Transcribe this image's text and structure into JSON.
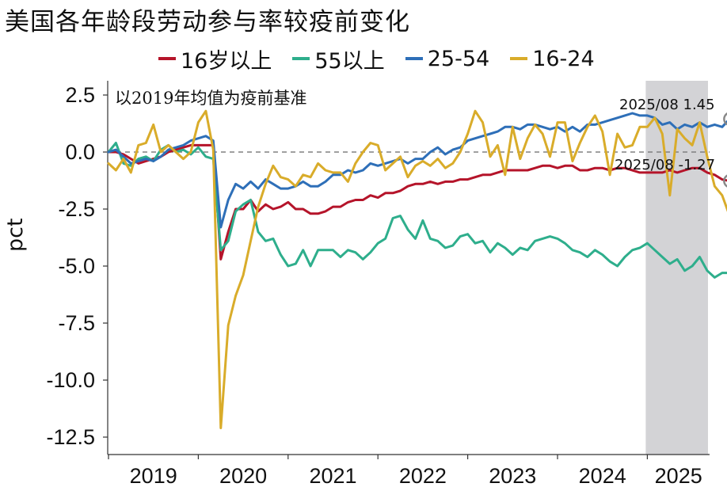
{
  "title": "美国各年龄段劳动参与率较疫前变化",
  "note": "以2019年均值为疫前基准",
  "ylabel": "pct",
  "chart_data": {
    "type": "line",
    "title": "美国各年龄段劳动参与率较疫前变化",
    "ylabel": "pct",
    "xlabel": "",
    "ylim": [
      -12.5,
      2.5
    ],
    "yticks": [
      2.5,
      0.0,
      -2.5,
      -5.0,
      -7.5,
      -10.0,
      -12.5
    ],
    "ytick_labels": [
      "2.5",
      "0.0",
      "-2.5",
      "-5.0",
      "-7.5",
      "-10.0",
      "-12.5"
    ],
    "xticks": [
      "2019",
      "2020",
      "2021",
      "2022",
      "2023",
      "2024",
      "2025"
    ],
    "x_start": "2019-01",
    "x_end": "2025-08",
    "reference_line": 0,
    "shaded_period": [
      "2025-01",
      "2025-08"
    ],
    "legend_position": "top",
    "series": [
      {
        "name": "16岁以上",
        "color": "#B5142A",
        "values": [
          0.0,
          0.0,
          -0.1,
          -0.3,
          -0.5,
          -0.4,
          -0.3,
          -0.2,
          0.0,
          0.1,
          0.2,
          0.3,
          0.3,
          0.3,
          0.3,
          -4.7,
          -3.5,
          -2.5,
          -2.5,
          -2.1,
          -2.6,
          -2.3,
          -2.5,
          -2.4,
          -2.2,
          -2.5,
          -2.5,
          -2.7,
          -2.7,
          -2.6,
          -2.4,
          -2.4,
          -2.2,
          -2.1,
          -2.1,
          -1.9,
          -2.0,
          -1.8,
          -1.8,
          -1.7,
          -1.5,
          -1.4,
          -1.4,
          -1.3,
          -1.4,
          -1.3,
          -1.3,
          -1.2,
          -1.2,
          -1.1,
          -1.0,
          -1.0,
          -0.9,
          -0.8,
          -0.8,
          -0.8,
          -0.8,
          -0.7,
          -0.6,
          -0.6,
          -0.7,
          -0.6,
          -0.6,
          -0.8,
          -0.8,
          -0.7,
          -0.7,
          -0.8,
          -0.7,
          -0.7,
          -0.8,
          -0.9,
          -0.9,
          -0.9,
          -0.9,
          -0.8,
          -0.9,
          -0.8,
          -0.7,
          -0.7,
          -0.9,
          -1.0,
          -1.2,
          -1.27
        ]
      },
      {
        "name": "55以上",
        "color": "#2EAE8C",
        "values": [
          0.0,
          0.4,
          -0.5,
          -0.6,
          -0.3,
          -0.2,
          -0.4,
          0.1,
          0.3,
          0.0,
          0.1,
          -0.1,
          0.2,
          -0.2,
          -0.3,
          -4.3,
          -3.9,
          -2.6,
          -2.3,
          -2.1,
          -3.5,
          -3.9,
          -3.8,
          -4.5,
          -5.0,
          -4.9,
          -4.3,
          -5.0,
          -4.3,
          -4.3,
          -4.3,
          -4.6,
          -4.3,
          -4.4,
          -4.7,
          -4.4,
          -4.0,
          -3.8,
          -2.9,
          -2.8,
          -3.4,
          -3.8,
          -3.0,
          -3.8,
          -3.9,
          -4.2,
          -4.1,
          -3.7,
          -3.6,
          -4.0,
          -3.9,
          -4.4,
          -4.0,
          -4.2,
          -4.5,
          -4.2,
          -4.3,
          -3.9,
          -3.8,
          -3.7,
          -3.8,
          -4.0,
          -4.3,
          -4.4,
          -4.6,
          -4.3,
          -4.5,
          -4.8,
          -5.0,
          -4.6,
          -4.3,
          -4.2,
          -4.0,
          -4.3,
          -4.6,
          -4.9,
          -4.7,
          -5.2,
          -5.0,
          -4.6,
          -5.2,
          -5.5,
          -5.3,
          -5.3
        ]
      },
      {
        "name": "25-54",
        "color": "#2E6FB8",
        "values": [
          0.0,
          0.1,
          -0.2,
          -0.5,
          -0.4,
          -0.3,
          -0.4,
          -0.2,
          0.1,
          0.2,
          0.3,
          0.5,
          0.6,
          0.7,
          0.5,
          -3.3,
          -2.1,
          -1.4,
          -1.6,
          -1.3,
          -1.6,
          -1.2,
          -1.4,
          -1.6,
          -1.6,
          -1.5,
          -1.3,
          -1.5,
          -1.5,
          -1.3,
          -1.0,
          -1.0,
          -0.8,
          -0.9,
          -0.8,
          -0.5,
          -0.6,
          -0.5,
          -0.4,
          -0.3,
          -0.5,
          -0.3,
          -0.3,
          0.0,
          0.2,
          -0.1,
          0.1,
          0.2,
          0.5,
          0.6,
          0.7,
          0.8,
          0.9,
          1.1,
          1.1,
          1.0,
          1.2,
          1.2,
          1.1,
          1.0,
          1.1,
          0.9,
          1.1,
          0.9,
          1.2,
          1.2,
          1.3,
          1.4,
          1.5,
          1.6,
          1.7,
          1.6,
          1.6,
          1.5,
          1.2,
          1.3,
          1.0,
          1.2,
          1.1,
          1.3,
          1.1,
          1.2,
          1.1,
          1.45
        ]
      },
      {
        "name": "16-24",
        "color": "#D9AC2A",
        "values": [
          -0.5,
          -0.8,
          -0.3,
          -0.9,
          0.3,
          0.4,
          1.2,
          0.0,
          0.3,
          0.0,
          -0.3,
          0.0,
          1.3,
          1.8,
          0.1,
          -12.1,
          -7.6,
          -6.3,
          -5.4,
          -3.9,
          -2.4,
          -1.4,
          -0.6,
          -1.1,
          -1.2,
          -1.5,
          -1.0,
          -1.1,
          -0.5,
          -0.8,
          -0.9,
          -0.9,
          -1.3,
          -0.5,
          0.0,
          0.4,
          0.3,
          -0.8,
          -0.5,
          -0.2,
          -1.1,
          -0.6,
          -0.4,
          -0.6,
          -0.3,
          -0.7,
          -0.5,
          0.0,
          0.8,
          1.8,
          1.3,
          -0.2,
          0.3,
          -1.0,
          1.1,
          -0.3,
          0.6,
          1.2,
          0.8,
          -0.2,
          1.3,
          1.3,
          -0.4,
          0.4,
          1.1,
          1.6,
          0.9,
          -1.0,
          0.8,
          0.2,
          0.3,
          1.1,
          1.1,
          1.5,
          0.8,
          -1.9,
          1.0,
          0.6,
          0.3,
          1.3,
          -0.2,
          -1.5,
          -1.9,
          -2.8
        ]
      }
    ],
    "annotations": [
      {
        "label": "2025/08 1.45",
        "series": "25-54",
        "value": 1.45
      },
      {
        "label": "2025/08 -1.27",
        "series": "16岁以上",
        "value": -1.27
      }
    ]
  }
}
